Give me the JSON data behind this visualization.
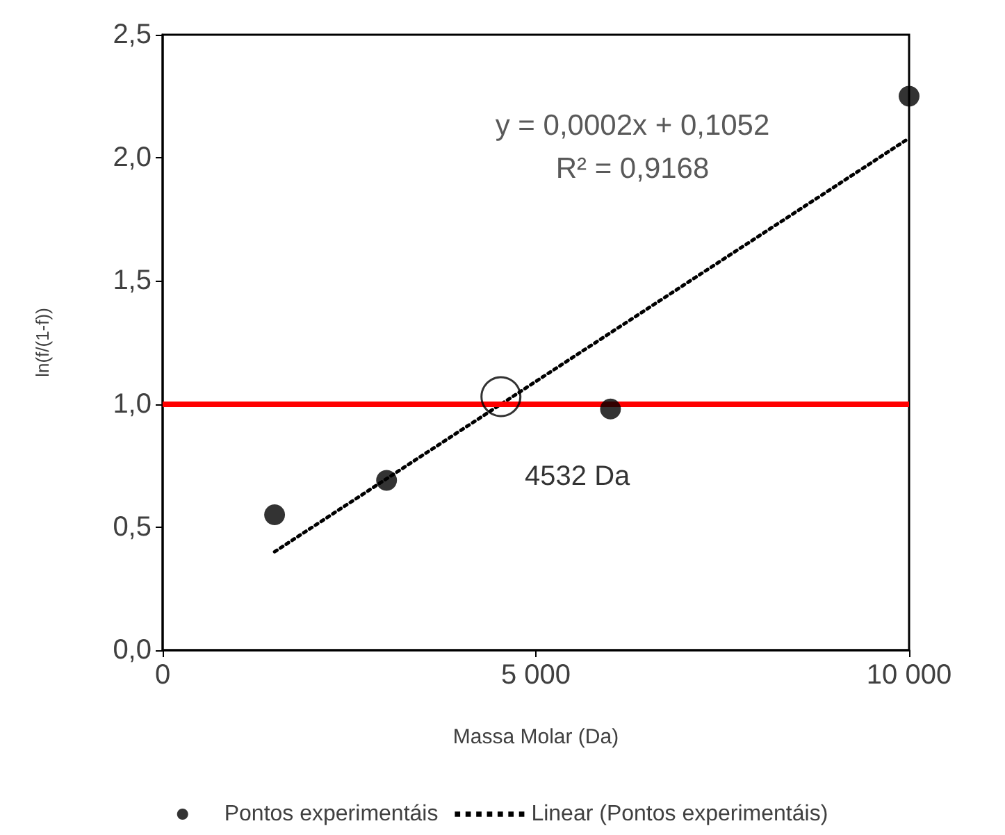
{
  "chart_data": {
    "type": "scatter",
    "xlabel": "Massa Molar (Da)",
    "ylabel": "ln(f/(1-f))",
    "xlim": [
      0,
      10000
    ],
    "xticks": [
      {
        "value": 0,
        "label": "0"
      },
      {
        "value": 5000,
        "label": "5 000"
      },
      {
        "value": 10000,
        "label": "10 000"
      }
    ],
    "ylim": [
      0,
      2.5
    ],
    "yticks": [
      {
        "value": 0,
        "label": "0,0"
      },
      {
        "value": 0.5,
        "label": "0,5"
      },
      {
        "value": 1,
        "label": "1,0"
      },
      {
        "value": 1.5,
        "label": "1,5"
      },
      {
        "value": 2,
        "label": "2,0"
      },
      {
        "value": 2.5,
        "label": "2,5"
      }
    ],
    "grid": false,
    "legend": "bottom",
    "series": [
      {
        "name": "Pontos experimentáis",
        "color": "#000000",
        "marker": "circle",
        "x": [
          1500,
          3000,
          6000,
          10000
        ],
        "values": [
          0.55,
          0.69,
          0.98,
          2.25
        ]
      },
      {
        "name": "Linear (Pontos experimentáis)",
        "type": "line",
        "color": "#000000",
        "marker": "none",
        "line_style": "dotted",
        "x": [
          1500,
          10000
        ],
        "values": [
          0.4,
          2.08
        ]
      }
    ],
    "ref_lines": [
      {
        "axis": "y",
        "value": 1,
        "color": "#ff0000",
        "line_style": "solid"
      }
    ],
    "annotations": [
      "y = 0,0002x + 0,1052",
      "R² = 0,9168",
      {
        "text": "4532 Da",
        "x": 4532,
        "y": 1.03
      }
    ]
  }
}
